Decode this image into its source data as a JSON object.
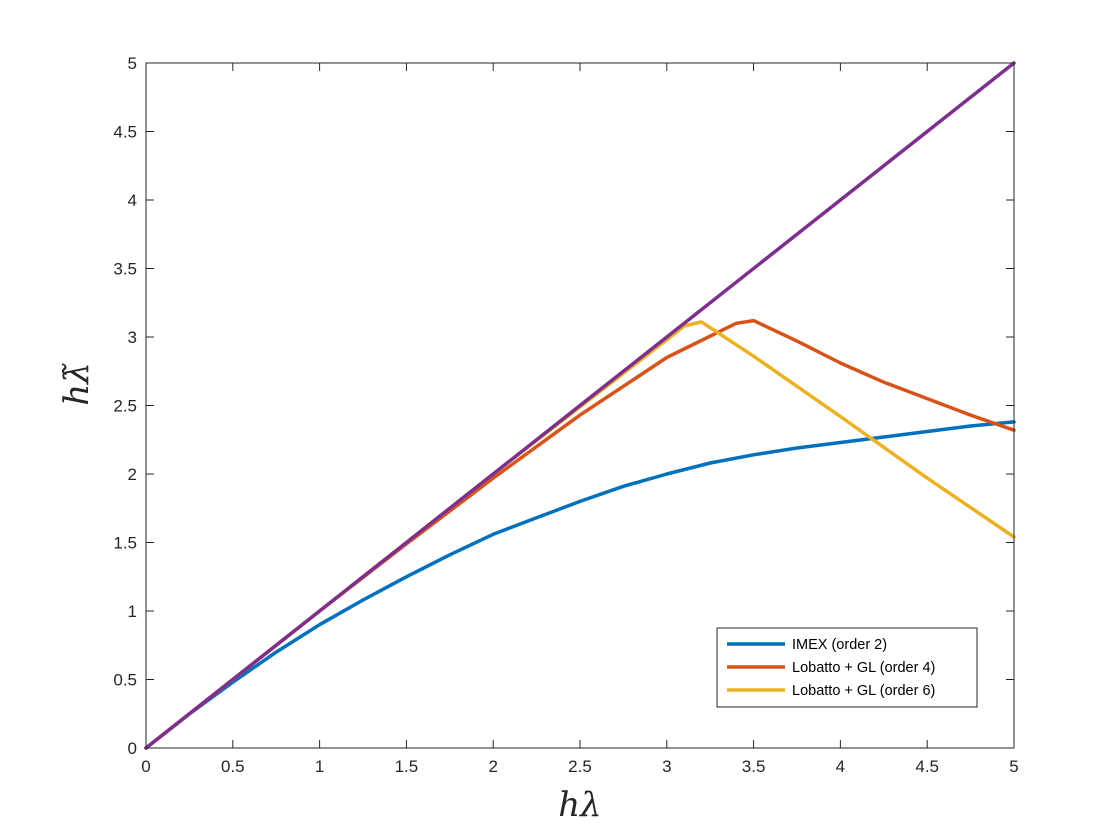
{
  "chart_data": {
    "type": "line",
    "title": "",
    "xlabel": "hλ",
    "ylabel": "hλ̃",
    "xlim": [
      0,
      5
    ],
    "ylim": [
      0,
      5
    ],
    "xticks": [
      "0",
      "0.5",
      "1",
      "1.5",
      "2",
      "2.5",
      "3",
      "3.5",
      "4",
      "4.5",
      "5"
    ],
    "yticks": [
      "0",
      "0.5",
      "1",
      "1.5",
      "2",
      "2.5",
      "3",
      "3.5",
      "4",
      "4.5",
      "5"
    ],
    "grid": false,
    "legend_position": "bottom-right",
    "series": [
      {
        "name": "IMEX (order 2)",
        "color": "#0072BD",
        "x": [
          0,
          0.25,
          0.5,
          0.75,
          1,
          1.25,
          1.5,
          1.75,
          2,
          2.25,
          2.5,
          2.75,
          3,
          3.25,
          3.5,
          3.75,
          4,
          4.25,
          4.5,
          4.75,
          5
        ],
        "y": [
          0,
          0.248,
          0.48,
          0.7,
          0.9,
          1.08,
          1.25,
          1.41,
          1.56,
          1.68,
          1.8,
          1.91,
          2.0,
          2.08,
          2.14,
          2.19,
          2.23,
          2.27,
          2.31,
          2.35,
          2.38
        ]
      },
      {
        "name": "Lobatto + GL (order 4)",
        "color": "#D95319",
        "x": [
          0,
          0.5,
          1,
          1.5,
          2,
          2.5,
          3,
          3.4,
          3.5,
          3.75,
          4,
          4.25,
          4.5,
          4.75,
          5
        ],
        "y": [
          0,
          0.5,
          1.0,
          1.49,
          1.97,
          2.43,
          2.85,
          3.1,
          3.12,
          2.97,
          2.81,
          2.67,
          2.55,
          2.43,
          2.32
        ]
      },
      {
        "name": "Lobatto + GL (order 6)",
        "color": "#EDB120",
        "x": [
          0,
          0.5,
          1,
          1.5,
          2,
          2.5,
          3,
          3.1,
          3.2,
          3.5,
          4,
          4.5,
          5
        ],
        "y": [
          0,
          0.5,
          1.0,
          1.5,
          2.0,
          2.49,
          2.98,
          3.08,
          3.11,
          2.86,
          2.42,
          1.97,
          1.54
        ]
      },
      {
        "name": "",
        "color": "#7E2F8E",
        "x": [
          0,
          5
        ],
        "y": [
          0,
          5
        ]
      }
    ]
  }
}
